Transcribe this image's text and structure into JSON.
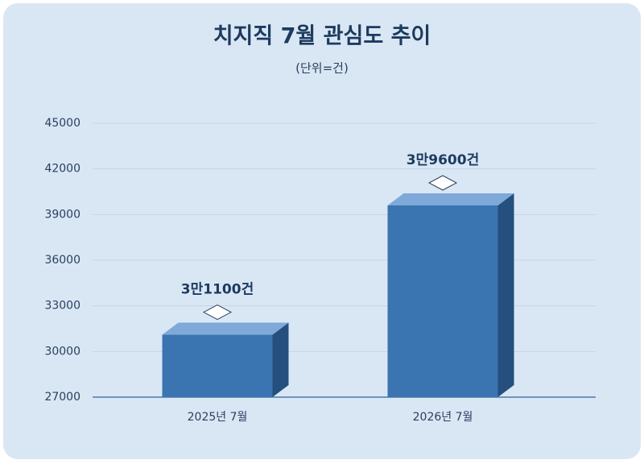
{
  "chart_data": {
    "type": "bar",
    "title": "치지직 7월 관심도 추이",
    "subtitle": "(단위=건)",
    "categories": [
      "2025년 7월",
      "2026년 7월"
    ],
    "values": [
      31100,
      39600
    ],
    "value_labels": [
      "3만1100건",
      "3만9600건"
    ],
    "color": "#3a74b1",
    "ylim": [
      27000,
      45000
    ],
    "yticks": [
      27000,
      30000,
      33000,
      36000,
      39000,
      42000,
      45000
    ],
    "grid": true
  }
}
